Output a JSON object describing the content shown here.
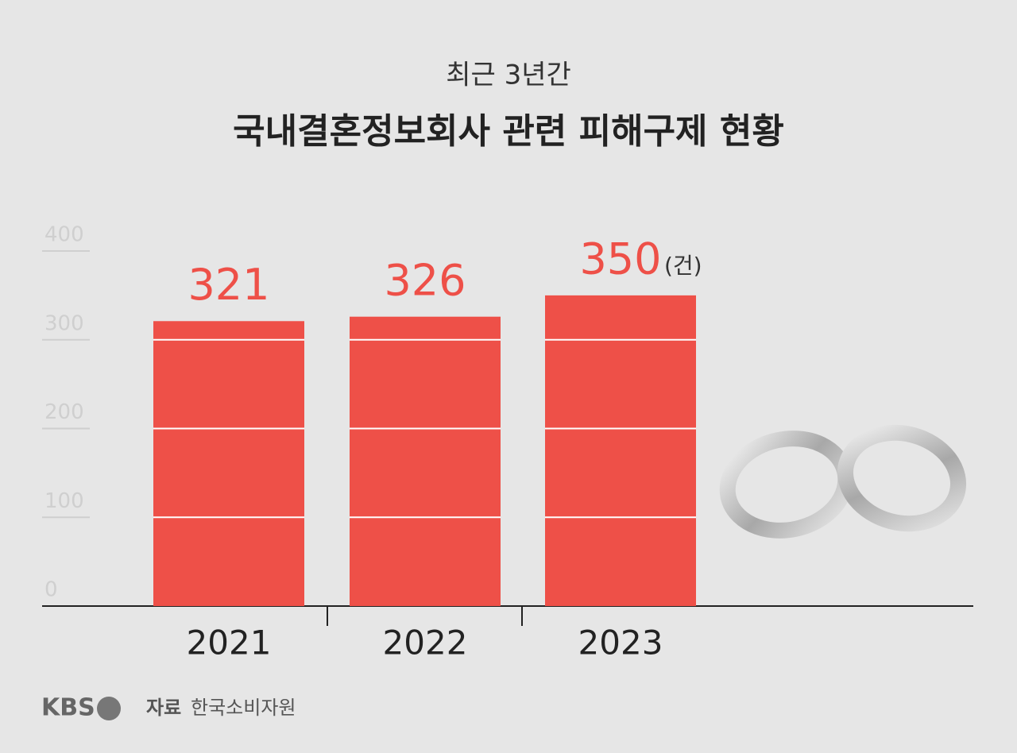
{
  "chart_data": {
    "type": "bar",
    "subtitle": "최근 3년간",
    "title": "국내결혼정보회사 관련 피해구제 현황",
    "categories": [
      "2021",
      "2022",
      "2023"
    ],
    "values": [
      321,
      326,
      350
    ],
    "unit": "(건)",
    "color": "#ee5048",
    "ylim": [
      0,
      400
    ],
    "yticks": [
      0,
      100,
      200,
      300,
      400
    ],
    "grid": true
  },
  "footer": {
    "brand": "KBS",
    "source_label": "자료",
    "source": "한국소비자원"
  }
}
